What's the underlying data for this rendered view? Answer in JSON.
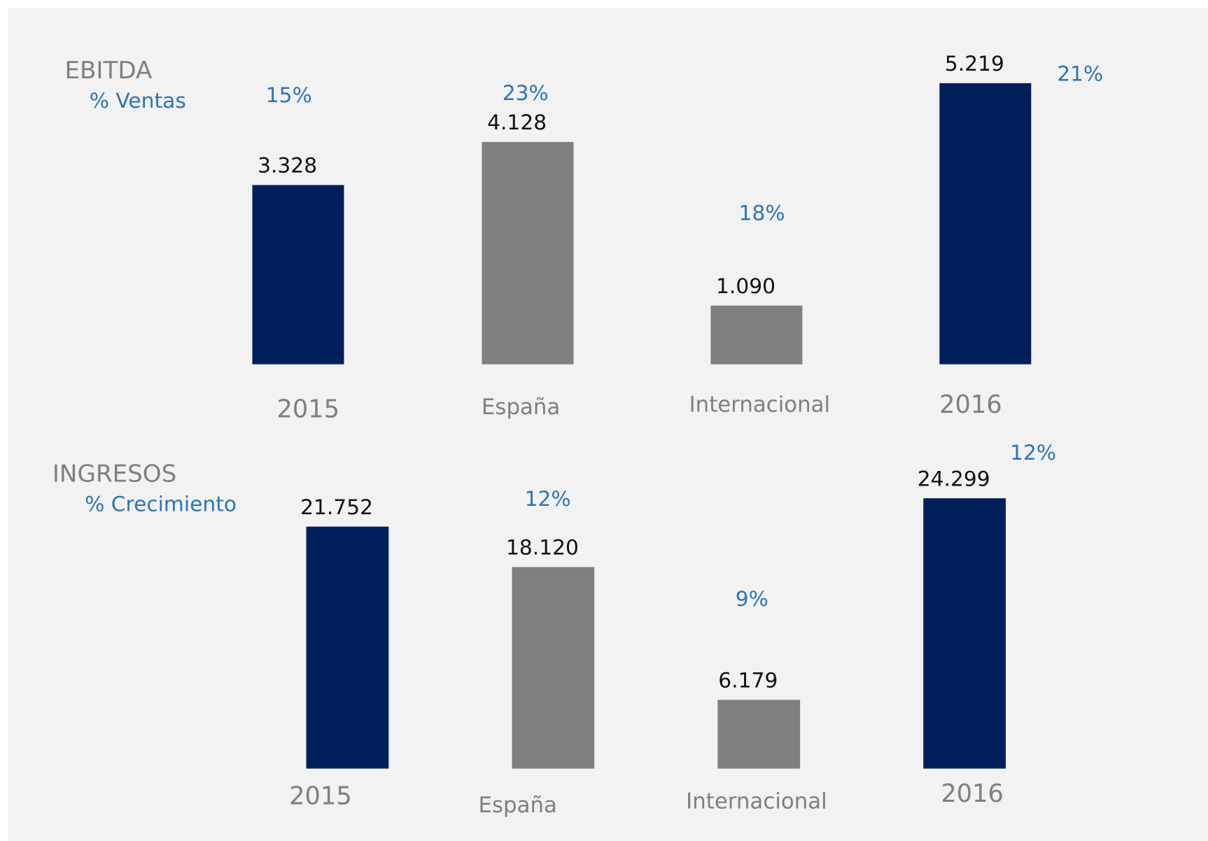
{
  "chart_data": [
    {
      "type": "bar",
      "title": "EBITDA",
      "subtitle": "% Ventas",
      "categories": [
        "2015",
        "España",
        "Internacional",
        "2016"
      ],
      "values": [
        3328,
        4128,
        1090,
        5219
      ],
      "value_labels": [
        "3.328",
        "4.128",
        "1.090",
        "5.219"
      ],
      "colors": [
        "#001f5b",
        "#7f7f7f",
        "#7f7f7f",
        "#001f5b"
      ],
      "percent": {
        "values": [
          15,
          23,
          18,
          21
        ],
        "value_labels": [
          "15%",
          "23%",
          "18%",
          "21%"
        ]
      }
    },
    {
      "type": "bar",
      "title": "INGRESOS",
      "subtitle": "% Crecimiento",
      "categories": [
        "2015",
        "España",
        "Internacional",
        "2016"
      ],
      "values": [
        21752,
        18120,
        6179,
        24299
      ],
      "value_labels": [
        "21.752",
        "18.120",
        "6.179",
        "24.299"
      ],
      "colors": [
        "#001f5b",
        "#7f7f7f",
        "#7f7f7f",
        "#001f5b"
      ],
      "percent": {
        "values": [
          null,
          12,
          9,
          12
        ],
        "value_labels": [
          null,
          "12%",
          "9%",
          "12%"
        ]
      }
    }
  ]
}
